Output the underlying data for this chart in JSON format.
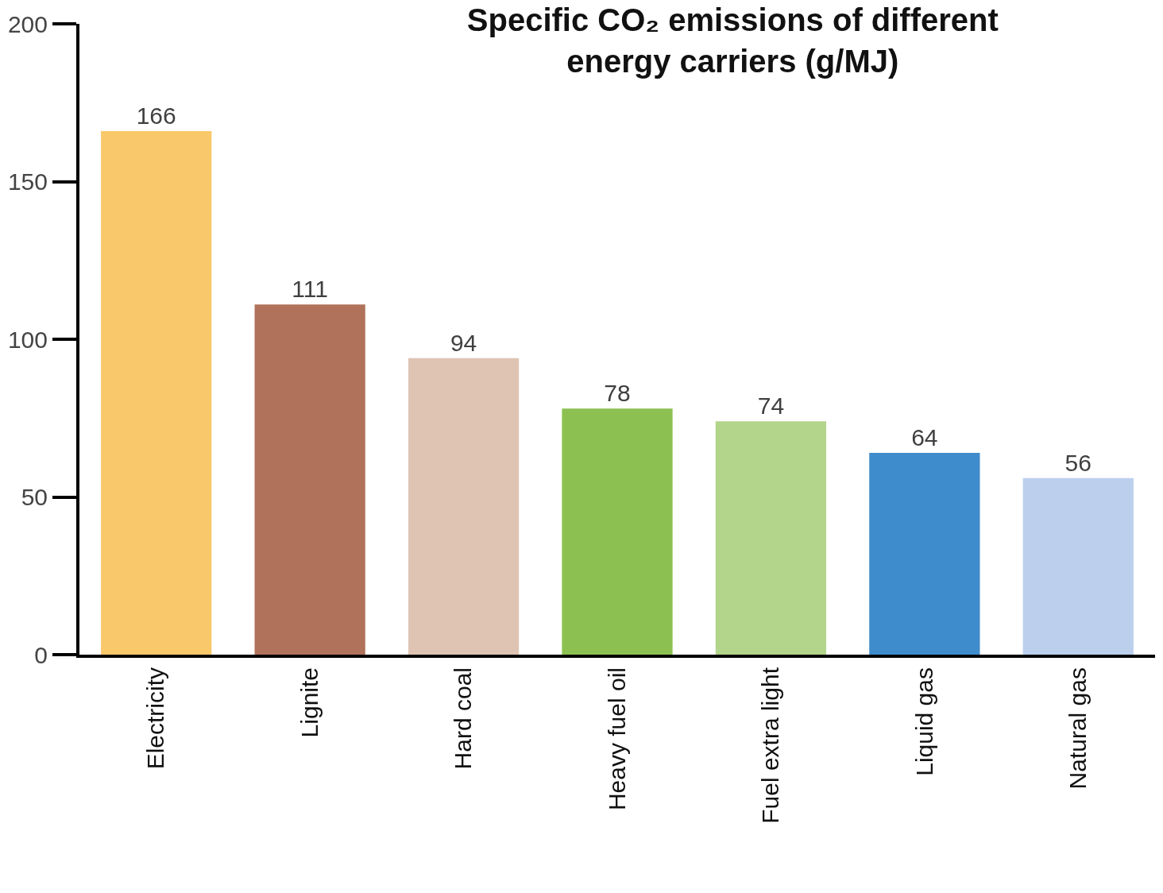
{
  "chart_data": {
    "type": "bar",
    "title": "Specific CO₂ emissions of different energy carriers (g/MJ)",
    "categories": [
      "Electricity",
      "Lignite",
      "Hard coal",
      "Heavy fuel oil",
      "Fuel extra light",
      "Liquid gas",
      "Natural gas"
    ],
    "values": [
      166,
      111,
      94,
      78,
      74,
      64,
      56
    ],
    "colors": [
      "#f9c86a",
      "#b0725a",
      "#dfc4b4",
      "#8cc151",
      "#b3d48b",
      "#3f8ccc",
      "#bcd0ee"
    ],
    "ylim": [
      0,
      200
    ],
    "yticks": [
      0,
      50,
      100,
      150,
      200
    ],
    "data_labels": true
  }
}
